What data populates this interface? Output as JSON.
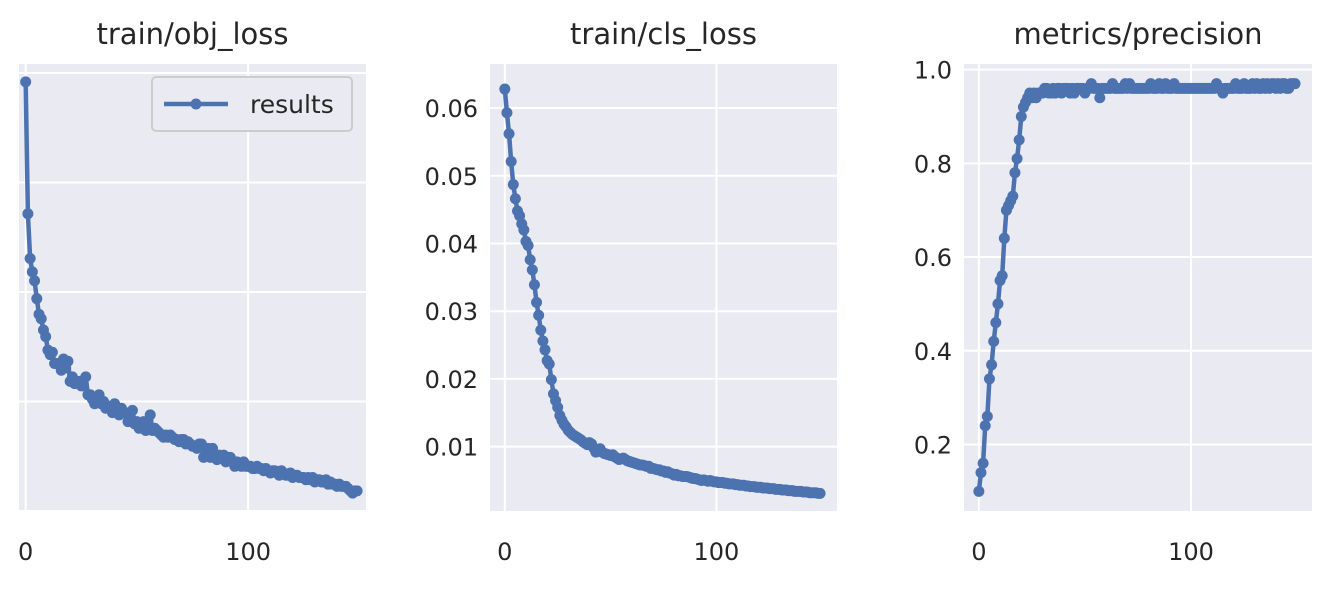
{
  "colors": {
    "background": "#ffffff",
    "plot_area": "#eaeaf2",
    "grid": "#ffffff",
    "series": "#4c72b0",
    "text": "#262626",
    "legend_border": "#cccccc"
  },
  "chart_data": [
    {
      "type": "line",
      "title": "train/obj_loss",
      "xlabel": "",
      "ylabel": "",
      "xlim": [
        -3,
        153
      ],
      "ylim": [
        0.0,
        1.0
      ],
      "xticks": [
        0,
        100
      ],
      "yticks": [
        0.0,
        0.245,
        0.49,
        0.735,
        0.98
      ],
      "ytick_labels": [
        "",
        "",
        "",
        "",
        ""
      ],
      "grid": true,
      "legend": {
        "location": "upper right",
        "entries": [
          "results"
        ]
      },
      "series": [
        {
          "name": "results",
          "marker": "circle",
          "x": [
            0,
            1,
            2,
            3,
            4,
            5,
            6,
            7,
            8,
            9,
            10,
            11,
            12,
            13,
            14,
            15,
            16,
            17,
            18,
            19,
            20,
            21,
            22,
            23,
            24,
            25,
            26,
            27,
            28,
            29,
            30,
            31,
            32,
            33,
            34,
            35,
            36,
            37,
            38,
            39,
            40,
            41,
            42,
            43,
            44,
            45,
            46,
            47,
            48,
            49,
            50,
            51,
            52,
            53,
            54,
            55,
            56,
            57,
            58,
            59,
            60,
            61,
            62,
            63,
            64,
            65,
            66,
            67,
            68,
            69,
            70,
            71,
            72,
            73,
            74,
            75,
            76,
            77,
            78,
            79,
            80,
            81,
            82,
            83,
            84,
            85,
            86,
            87,
            88,
            89,
            90,
            91,
            92,
            93,
            94,
            95,
            96,
            97,
            98,
            99,
            100,
            101,
            102,
            103,
            104,
            105,
            106,
            107,
            108,
            109,
            110,
            111,
            112,
            113,
            114,
            115,
            116,
            117,
            118,
            119,
            120,
            121,
            122,
            123,
            124,
            125,
            126,
            127,
            128,
            129,
            130,
            131,
            132,
            133,
            134,
            135,
            136,
            137,
            138,
            139,
            140,
            141,
            142,
            143,
            144,
            145,
            146,
            147,
            148,
            149
          ],
          "y": [
            0.96,
            0.665,
            0.565,
            0.535,
            0.515,
            0.475,
            0.44,
            0.43,
            0.405,
            0.39,
            0.36,
            0.35,
            0.355,
            0.33,
            0.33,
            0.33,
            0.315,
            0.34,
            0.32,
            0.335,
            0.29,
            0.3,
            0.285,
            0.29,
            0.29,
            0.28,
            0.28,
            0.3,
            0.26,
            0.26,
            0.25,
            0.24,
            0.245,
            0.26,
            0.24,
            0.245,
            0.23,
            0.235,
            0.23,
            0.22,
            0.24,
            0.22,
            0.215,
            0.23,
            0.22,
            0.22,
            0.2,
            0.21,
            0.225,
            0.195,
            0.2,
            0.185,
            0.195,
            0.2,
            0.18,
            0.2,
            0.215,
            0.18,
            0.185,
            0.18,
            0.175,
            0.17,
            0.165,
            0.17,
            0.165,
            0.17,
            0.165,
            0.16,
            0.16,
            0.155,
            0.16,
            0.16,
            0.15,
            0.155,
            0.15,
            0.145,
            0.145,
            0.14,
            0.15,
            0.15,
            0.12,
            0.125,
            0.14,
            0.12,
            0.14,
            0.12,
            0.115,
            0.125,
            0.12,
            0.125,
            0.11,
            0.12,
            0.12,
            0.11,
            0.1,
            0.11,
            0.105,
            0.1,
            0.11,
            0.1,
            0.1,
            0.1,
            0.095,
            0.095,
            0.1,
            0.095,
            0.095,
            0.09,
            0.095,
            0.09,
            0.085,
            0.09,
            0.09,
            0.085,
            0.08,
            0.09,
            0.085,
            0.08,
            0.08,
            0.085,
            0.075,
            0.08,
            0.08,
            0.075,
            0.075,
            0.075,
            0.07,
            0.075,
            0.07,
            0.075,
            0.065,
            0.07,
            0.07,
            0.065,
            0.065,
            0.07,
            0.06,
            0.065,
            0.06,
            0.06,
            0.055,
            0.06,
            0.055,
            0.055,
            0.055,
            0.05,
            0.045,
            0.04,
            0.045,
            0.045
          ]
        }
      ]
    },
    {
      "type": "line",
      "title": "train/cls_loss",
      "xlabel": "",
      "ylabel": "",
      "xlim": [
        -7,
        157
      ],
      "ylim": [
        0.0005,
        0.0665
      ],
      "xticks": [
        0,
        100
      ],
      "yticks": [
        0.01,
        0.02,
        0.03,
        0.04,
        0.05,
        0.06
      ],
      "ytick_labels": [
        "0.01",
        "0.02",
        "0.03",
        "0.04",
        "0.05",
        "0.06"
      ],
      "grid": true,
      "series": [
        {
          "name": "",
          "marker": "circle",
          "x": [
            0,
            1,
            2,
            3,
            4,
            5,
            6,
            7,
            8,
            9,
            10,
            11,
            12,
            13,
            14,
            15,
            16,
            17,
            18,
            19,
            20,
            21,
            22,
            23,
            24,
            25,
            26,
            27,
            28,
            29,
            30,
            31,
            32,
            33,
            34,
            35,
            36,
            37,
            38,
            39,
            40,
            41,
            42,
            43,
            44,
            45,
            46,
            47,
            48,
            49,
            50,
            51,
            52,
            53,
            54,
            55,
            56,
            57,
            58,
            59,
            60,
            61,
            62,
            63,
            64,
            65,
            66,
            67,
            68,
            69,
            70,
            71,
            72,
            73,
            74,
            75,
            76,
            77,
            78,
            79,
            80,
            81,
            82,
            83,
            84,
            85,
            86,
            87,
            88,
            89,
            90,
            91,
            92,
            93,
            94,
            95,
            96,
            97,
            98,
            99,
            100,
            101,
            102,
            103,
            104,
            105,
            106,
            107,
            108,
            109,
            110,
            111,
            112,
            113,
            114,
            115,
            116,
            117,
            118,
            119,
            120,
            121,
            122,
            123,
            124,
            125,
            126,
            127,
            128,
            129,
            130,
            131,
            132,
            133,
            134,
            135,
            136,
            137,
            138,
            139,
            140,
            141,
            142,
            143,
            144,
            145,
            146,
            147,
            148,
            149
          ],
          "y": [
            0.0628,
            0.0593,
            0.0562,
            0.0521,
            0.0487,
            0.0466,
            0.0448,
            0.0441,
            0.0429,
            0.042,
            0.0403,
            0.0397,
            0.0376,
            0.0361,
            0.0339,
            0.0313,
            0.0294,
            0.0272,
            0.0256,
            0.0243,
            0.0227,
            0.0222,
            0.0199,
            0.0178,
            0.0168,
            0.0158,
            0.0146,
            0.0139,
            0.0133,
            0.0129,
            0.0124,
            0.0121,
            0.0118,
            0.0116,
            0.0114,
            0.0112,
            0.011,
            0.0107,
            0.0105,
            0.0103,
            0.0106,
            0.0104,
            0.0098,
            0.0092,
            0.0093,
            0.0097,
            0.0092,
            0.009,
            0.0089,
            0.0088,
            0.0087,
            0.0088,
            0.0085,
            0.0083,
            0.0081,
            0.0082,
            0.0083,
            0.0081,
            0.0079,
            0.0078,
            0.0077,
            0.0076,
            0.0075,
            0.0074,
            0.0073,
            0.0073,
            0.0072,
            0.0071,
            0.0071,
            0.0068,
            0.0068,
            0.0067,
            0.0066,
            0.0066,
            0.0064,
            0.0064,
            0.0062,
            0.0063,
            0.0061,
            0.006,
            0.0058,
            0.0059,
            0.0057,
            0.0057,
            0.0056,
            0.0056,
            0.0056,
            0.0055,
            0.0054,
            0.0053,
            0.0053,
            0.0052,
            0.0051,
            0.005,
            0.0051,
            0.005,
            0.0049,
            0.005,
            0.0049,
            0.0048,
            0.0048,
            0.0047,
            0.0047,
            0.0047,
            0.0046,
            0.0046,
            0.0045,
            0.0045,
            0.0045,
            0.0044,
            0.0044,
            0.0043,
            0.0043,
            0.0043,
            0.0042,
            0.0042,
            0.0041,
            0.0041,
            0.0041,
            0.004,
            0.004,
            0.004,
            0.0039,
            0.0039,
            0.0039,
            0.0038,
            0.0038,
            0.0038,
            0.0037,
            0.0037,
            0.0037,
            0.0036,
            0.0036,
            0.0036,
            0.0035,
            0.0035,
            0.0035,
            0.0034,
            0.0034,
            0.0034,
            0.0034,
            0.0033,
            0.0033,
            0.0033,
            0.0032,
            0.0032,
            0.0032,
            0.0032,
            0.0031,
            0.0031
          ]
        }
      ]
    },
    {
      "type": "line",
      "title": "metrics/precision",
      "xlabel": "",
      "ylabel": "",
      "xlim": [
        -7,
        157
      ],
      "ylim": [
        0.058,
        1.012
      ],
      "xticks": [
        0,
        100
      ],
      "yticks": [
        0.2,
        0.4,
        0.6,
        0.8,
        1.0
      ],
      "ytick_labels": [
        "0.2",
        "0.4",
        "0.6",
        "0.8",
        "1.0"
      ],
      "grid": true,
      "series": [
        {
          "name": "",
          "marker": "circle",
          "x": [
            0,
            1,
            2,
            3,
            4,
            5,
            6,
            7,
            8,
            9,
            10,
            11,
            12,
            13,
            14,
            15,
            16,
            17,
            18,
            19,
            20,
            21,
            22,
            23,
            24,
            25,
            26,
            27,
            28,
            29,
            30,
            31,
            32,
            33,
            34,
            35,
            36,
            37,
            38,
            39,
            40,
            41,
            42,
            43,
            44,
            45,
            46,
            47,
            48,
            49,
            50,
            51,
            52,
            53,
            54,
            55,
            56,
            57,
            58,
            59,
            60,
            61,
            62,
            63,
            64,
            65,
            66,
            67,
            68,
            69,
            70,
            71,
            72,
            73,
            74,
            75,
            76,
            77,
            78,
            79,
            80,
            81,
            82,
            83,
            84,
            85,
            86,
            87,
            88,
            89,
            90,
            91,
            92,
            93,
            94,
            95,
            96,
            97,
            98,
            99,
            100,
            101,
            102,
            103,
            104,
            105,
            106,
            107,
            108,
            109,
            110,
            111,
            112,
            113,
            114,
            115,
            116,
            117,
            118,
            119,
            120,
            121,
            122,
            123,
            124,
            125,
            126,
            127,
            128,
            129,
            130,
            131,
            132,
            133,
            134,
            135,
            136,
            137,
            138,
            139,
            140,
            141,
            142,
            143,
            144,
            145,
            146,
            147,
            148,
            149
          ],
          "y": [
            0.1,
            0.14,
            0.16,
            0.24,
            0.26,
            0.34,
            0.37,
            0.42,
            0.46,
            0.5,
            0.55,
            0.56,
            0.64,
            0.7,
            0.71,
            0.72,
            0.73,
            0.78,
            0.81,
            0.85,
            0.9,
            0.92,
            0.93,
            0.94,
            0.95,
            0.94,
            0.95,
            0.94,
            0.95,
            0.95,
            0.95,
            0.96,
            0.96,
            0.95,
            0.95,
            0.96,
            0.95,
            0.96,
            0.96,
            0.95,
            0.96,
            0.96,
            0.96,
            0.95,
            0.96,
            0.95,
            0.96,
            0.96,
            0.96,
            0.96,
            0.95,
            0.96,
            0.96,
            0.97,
            0.96,
            0.96,
            0.96,
            0.94,
            0.96,
            0.96,
            0.96,
            0.96,
            0.96,
            0.97,
            0.96,
            0.96,
            0.96,
            0.96,
            0.96,
            0.97,
            0.96,
            0.97,
            0.96,
            0.96,
            0.96,
            0.96,
            0.96,
            0.96,
            0.96,
            0.96,
            0.96,
            0.97,
            0.96,
            0.96,
            0.96,
            0.97,
            0.96,
            0.96,
            0.97,
            0.96,
            0.96,
            0.96,
            0.97,
            0.96,
            0.96,
            0.96,
            0.96,
            0.96,
            0.96,
            0.96,
            0.96,
            0.96,
            0.96,
            0.96,
            0.96,
            0.96,
            0.96,
            0.96,
            0.96,
            0.96,
            0.96,
            0.96,
            0.97,
            0.96,
            0.96,
            0.95,
            0.96,
            0.96,
            0.96,
            0.96,
            0.96,
            0.97,
            0.96,
            0.96,
            0.96,
            0.97,
            0.96,
            0.96,
            0.96,
            0.97,
            0.96,
            0.97,
            0.96,
            0.96,
            0.97,
            0.96,
            0.97,
            0.96,
            0.97,
            0.97,
            0.96,
            0.97,
            0.96,
            0.97,
            0.97,
            0.96,
            0.96,
            0.97,
            0.97,
            0.97
          ]
        }
      ]
    }
  ]
}
